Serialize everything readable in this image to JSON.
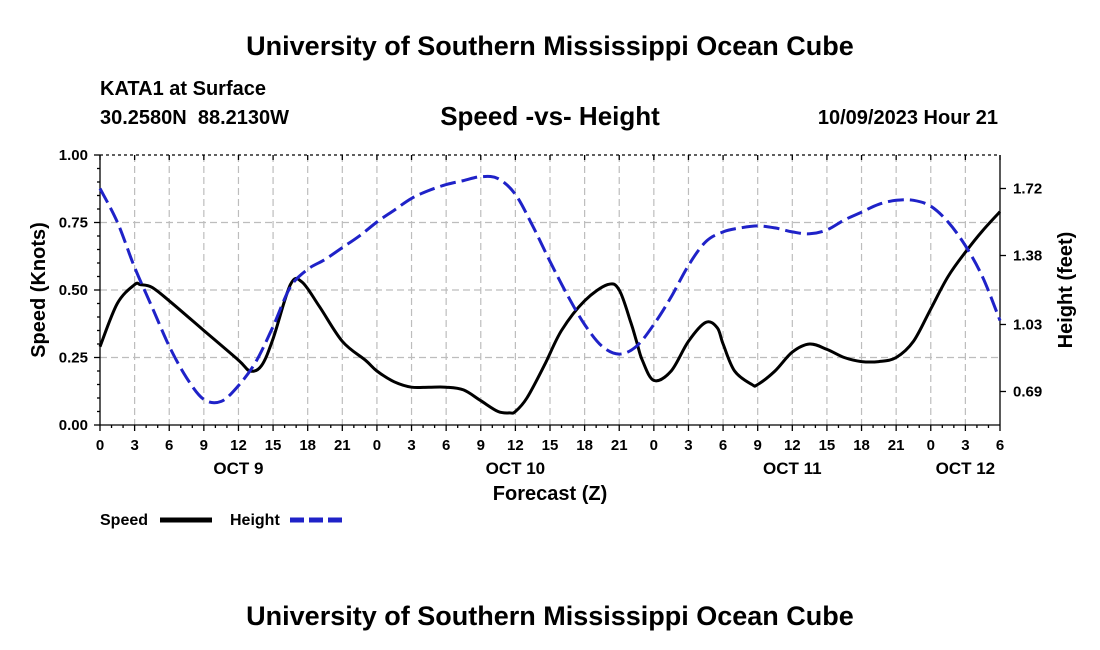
{
  "header": {
    "title": "University of Southern Mississippi Ocean Cube",
    "station": "KATA1 at Surface",
    "coordinates": "30.2580N  88.2130W",
    "subtitle": "Speed -vs- Height",
    "timestamp": "10/09/2023 Hour 21"
  },
  "footer": {
    "title": "University of Southern Mississippi Ocean Cube"
  },
  "chart_data": {
    "type": "line",
    "title": "Speed -vs- Height",
    "xlabel": "Forecast (Z)",
    "ylabel_left": "Speed (Knots)",
    "ylabel_right": "Height (feet)",
    "x_unit": "forecast hour since OCT 9 00Z",
    "xlim": [
      0,
      78
    ],
    "ylim_left": [
      0.0,
      1.0
    ],
    "ylim_right": [
      0.52,
      1.89
    ],
    "grid": true,
    "legend_position": "bottom-left",
    "x_tick_values": [
      0,
      3,
      6,
      9,
      12,
      15,
      18,
      21,
      24,
      27,
      30,
      33,
      36,
      39,
      42,
      45,
      48,
      51,
      54,
      57,
      60,
      63,
      66,
      69,
      72,
      75,
      78
    ],
    "x_tick_labels": [
      "0",
      "3",
      "6",
      "9",
      "12",
      "15",
      "18",
      "21",
      "0",
      "3",
      "6",
      "9",
      "12",
      "15",
      "18",
      "21",
      "0",
      "3",
      "6",
      "9",
      "12",
      "15",
      "18",
      "21",
      "0",
      "3",
      "6"
    ],
    "day_labels": [
      {
        "label": "OCT 9",
        "x": 12
      },
      {
        "label": "OCT 10",
        "x": 36
      },
      {
        "label": "OCT 11",
        "x": 60
      },
      {
        "label": "OCT 12",
        "x": 75
      }
    ],
    "y_left_ticks": [
      {
        "value": 0.0,
        "label": "0.00"
      },
      {
        "value": 0.25,
        "label": "0.25"
      },
      {
        "value": 0.5,
        "label": "0.50"
      },
      {
        "value": 0.75,
        "label": "0.75"
      },
      {
        "value": 1.0,
        "label": "1.00"
      }
    ],
    "y_right_ticks": [
      {
        "value": 0.69,
        "label": "0.69"
      },
      {
        "value": 1.03,
        "label": "1.03"
      },
      {
        "value": 1.38,
        "label": "1.38"
      },
      {
        "value": 1.72,
        "label": "1.72"
      }
    ],
    "series": [
      {
        "name": "Speed",
        "axis": "left",
        "color": "#000000",
        "style": "solid",
        "x": [
          0,
          1.5,
          3,
          3.5,
          4.5,
          6,
          9,
          12,
          13,
          14,
          15,
          16.5,
          17.5,
          19,
          21,
          23,
          24,
          25.5,
          27,
          28.5,
          30,
          31.5,
          33,
          34.5,
          35.5,
          36,
          37,
          38.5,
          40,
          42,
          44,
          45,
          46,
          46.5,
          47,
          48,
          49.5,
          51,
          52.5,
          53.5,
          54,
          55,
          56.5,
          57,
          58.5,
          60,
          61.5,
          63,
          64.5,
          66,
          67.5,
          69,
          70.5,
          72,
          73.5,
          75,
          76.5,
          78
        ],
        "values": [
          0.29,
          0.45,
          0.52,
          0.52,
          0.51,
          0.46,
          0.35,
          0.24,
          0.2,
          0.22,
          0.32,
          0.52,
          0.53,
          0.44,
          0.31,
          0.24,
          0.2,
          0.16,
          0.14,
          0.14,
          0.14,
          0.13,
          0.09,
          0.05,
          0.045,
          0.05,
          0.1,
          0.22,
          0.35,
          0.46,
          0.52,
          0.5,
          0.38,
          0.31,
          0.24,
          0.165,
          0.2,
          0.31,
          0.38,
          0.36,
          0.3,
          0.2,
          0.15,
          0.15,
          0.2,
          0.27,
          0.3,
          0.28,
          0.25,
          0.235,
          0.235,
          0.25,
          0.31,
          0.43,
          0.55,
          0.64,
          0.72,
          0.79
        ]
      },
      {
        "name": "Height",
        "axis": "right",
        "color": "#1f22c8",
        "style": "dashed",
        "x": [
          0,
          1.5,
          3,
          4.5,
          6,
          7.5,
          9,
          10.5,
          12,
          13.5,
          15,
          16.5,
          18,
          19.5,
          21,
          22.5,
          24,
          25.5,
          27,
          28.5,
          30,
          31.5,
          33,
          34.5,
          36,
          37.5,
          39,
          40.5,
          42,
          43.5,
          45,
          46.5,
          48,
          49.5,
          51,
          52.5,
          54,
          55.5,
          57,
          58.5,
          60,
          61.5,
          63,
          64.5,
          66,
          67.5,
          69,
          70.5,
          72,
          73.5,
          75,
          76.5,
          78
        ],
        "values": [
          1.72,
          1.55,
          1.32,
          1.12,
          0.92,
          0.76,
          0.65,
          0.64,
          0.72,
          0.84,
          1.02,
          1.22,
          1.31,
          1.36,
          1.42,
          1.48,
          1.55,
          1.61,
          1.67,
          1.71,
          1.74,
          1.76,
          1.78,
          1.77,
          1.69,
          1.53,
          1.35,
          1.18,
          1.03,
          0.92,
          0.88,
          0.92,
          1.03,
          1.17,
          1.33,
          1.45,
          1.5,
          1.52,
          1.53,
          1.52,
          1.5,
          1.49,
          1.51,
          1.56,
          1.6,
          1.64,
          1.66,
          1.66,
          1.63,
          1.55,
          1.43,
          1.27,
          1.05
        ]
      }
    ]
  }
}
